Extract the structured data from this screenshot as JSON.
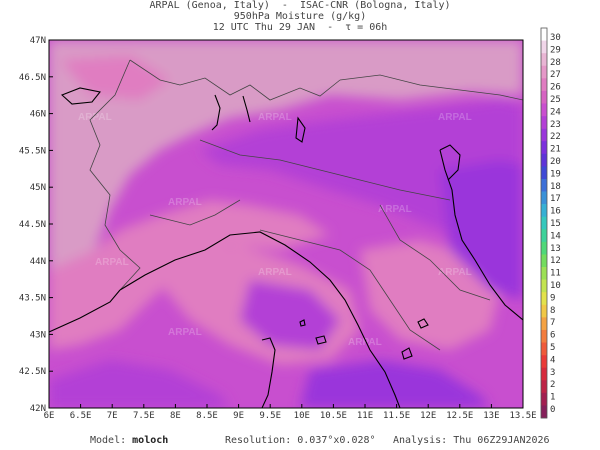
{
  "header": {
    "line1": "ARPAL (Genoa, Italy)  -  ISAC-CNR (Bologna, Italy)",
    "line2": "950hPa Moisture (g/kg)",
    "line3": "12 UTC Thu 29 JAN  -  τ = 06h"
  },
  "axes": {
    "x_labels": [
      "6E",
      "6.5E",
      "7E",
      "7.5E",
      "8E",
      "8.5E",
      "9E",
      "9.5E",
      "10E",
      "10.5E",
      "11E",
      "11.5E",
      "12E",
      "12.5E",
      "13E",
      "13.5E"
    ],
    "y_labels": [
      "47N",
      "46.5N",
      "46N",
      "45.5N",
      "45N",
      "44.5N",
      "44N",
      "43.5N",
      "43N",
      "42.5N",
      "42N"
    ]
  },
  "colorbar": {
    "labels": [
      "30",
      "29",
      "28",
      "27",
      "26",
      "25",
      "24",
      "23",
      "22",
      "21",
      "20",
      "19",
      "18",
      "17",
      "16",
      "15",
      "14",
      "13",
      "12",
      "11",
      "10",
      "9",
      "8",
      "7",
      "6",
      "5",
      "4",
      "3",
      "2",
      "1",
      "0"
    ],
    "colors": [
      "#ffffff",
      "#f1d5e9",
      "#e9b5d4",
      "#e598c8",
      "#e07dc1",
      "#d663c2",
      "#c94fcf",
      "#b33fd6",
      "#9a36db",
      "#7c30dd",
      "#5e34d8",
      "#3f49d6",
      "#3c6fd8",
      "#3a91d8",
      "#36b0d4",
      "#35c8bd",
      "#3ed29a",
      "#4fd879",
      "#73dc5e",
      "#9ce055",
      "#c3e450",
      "#e3e24b",
      "#f1c846",
      "#f4a243",
      "#f27c3e",
      "#ef5a3a",
      "#ea3b38",
      "#d72b3c",
      "#bd2346",
      "#a21f50",
      "#86205a"
    ],
    "stroke": "#555555"
  },
  "watermark": "ARPAL",
  "footer": {
    "model_label": "Model:",
    "model_value": "moloch",
    "resolution_label": "Resolution:",
    "resolution_value": "0.037°x0.028°",
    "analysis_label": "Analysis:",
    "analysis_value": "Thu 06Z29JAN2026"
  },
  "colors": {
    "base_moisture": "#c84fcf",
    "low_moisture": "#d99bc6",
    "mid_moisture": "#e07dc1",
    "high_moisture": "#b33fd6",
    "very_high_moisture": "#9a36db",
    "coastline": "#000000",
    "border": "#444444"
  }
}
